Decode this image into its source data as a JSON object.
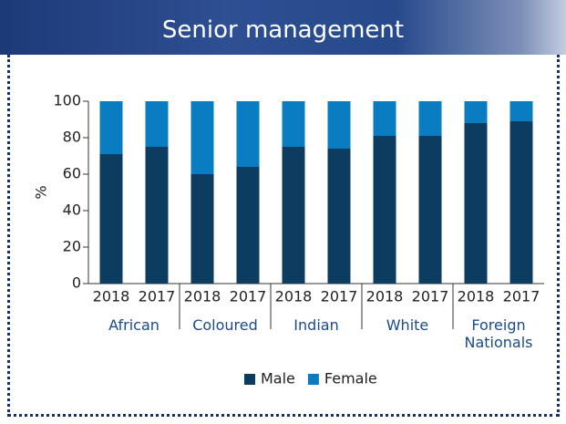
{
  "chart_data": {
    "type": "bar",
    "stacked": true,
    "title": "Senior management",
    "y_label": "%",
    "categories": [
      "2018",
      "2017",
      "2018",
      "2017",
      "2018",
      "2017",
      "2018",
      "2017",
      "2018",
      "2017"
    ],
    "groups": [
      "African",
      "Coloured",
      "Indian",
      "White",
      "Foreign Nationals"
    ],
    "series": [
      {
        "name": "Male",
        "color": "#0d3c61",
        "values": [
          71,
          75,
          60,
          64,
          75,
          74,
          81,
          81,
          88,
          89
        ]
      },
      {
        "name": "Female",
        "color": "#0a7cc1",
        "values": [
          29,
          25,
          40,
          36,
          25,
          26,
          19,
          19,
          12,
          11
        ]
      }
    ],
    "ylim": [
      0,
      100
    ],
    "yticks": [
      0,
      20,
      40,
      60,
      80,
      100
    ],
    "legend": "bottom"
  }
}
